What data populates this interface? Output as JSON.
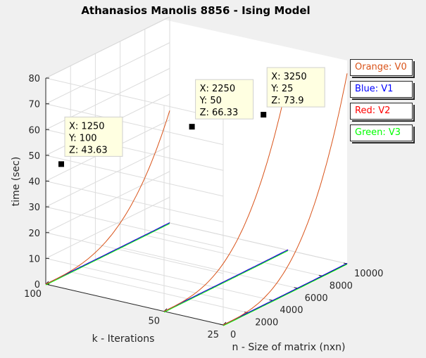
{
  "chart_data": {
    "type": "line3d",
    "title": "Athanasios Manolis 8856 - Ising Model",
    "xlabel": "n - Size of matrix (nxn)",
    "ylabel": "k - Iterations",
    "zlabel": "time (sec)",
    "xlim": [
      0,
      10000
    ],
    "ylim": [
      25,
      100
    ],
    "zlim": [
      0,
      80
    ],
    "x_ticks": [
      "0",
      "2000",
      "4000",
      "6000",
      "8000",
      "10000"
    ],
    "y_ticks": [
      "25",
      "50",
      "100"
    ],
    "z_ticks": [
      "0",
      "10",
      "20",
      "30",
      "40",
      "50",
      "60",
      "70",
      "80"
    ],
    "grid": true,
    "k_values": [
      100,
      50,
      25
    ],
    "series": [
      {
        "name": "Orange: V0",
        "color": "#d95319",
        "max_time": {
          "100": 43.63,
          "50": 66.33,
          "25": 73.9
        }
      },
      {
        "name": "Blue: V1",
        "color": "#0000ff",
        "max_time": {
          "100": 0.1,
          "50": 0.15,
          "25": 0.2
        }
      },
      {
        "name": "Red: V2",
        "color": "#ff0000",
        "max_time": {
          "100": 0.1,
          "50": 0.15,
          "25": 0.2
        }
      },
      {
        "name": "Green: V3",
        "color": "#00ff00",
        "max_time": {
          "100": 0.08,
          "50": 0.12,
          "25": 0.16
        }
      }
    ],
    "datatips": [
      {
        "lines": [
          "X: 1250",
          "Y: 100",
          "Z: 43.63"
        ],
        "x": 1250,
        "y": 100,
        "z": 43.63
      },
      {
        "lines": [
          "X: 2250",
          "Y: 50",
          "Z: 66.33"
        ],
        "x": 2250,
        "y": 50,
        "z": 66.33
      },
      {
        "lines": [
          "X: 3250",
          "Y: 25",
          "Z: 73.9"
        ],
        "x": 3250,
        "y": 25,
        "z": 73.9
      }
    ],
    "legend": {
      "placement": "right",
      "entries": [
        {
          "label": "Orange: V0",
          "color": "#d95319"
        },
        {
          "label": "Blue: V1",
          "color": "#0000ff"
        },
        {
          "label": "Red: V2",
          "color": "#ff0000"
        },
        {
          "label": "Green: V3",
          "color": "#00ff00"
        }
      ]
    }
  }
}
